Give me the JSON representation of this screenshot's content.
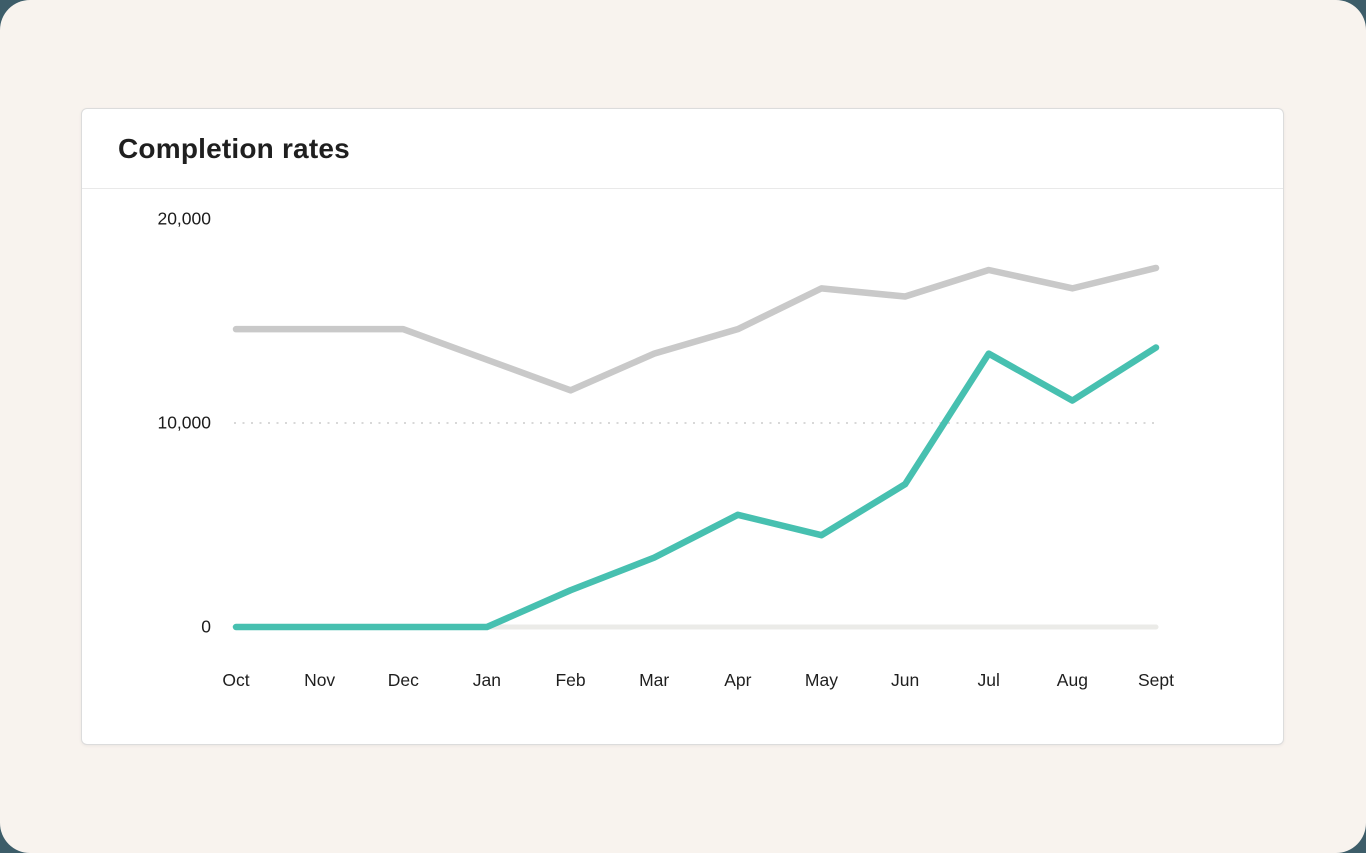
{
  "card": {
    "title": "Completion rates"
  },
  "colors": {
    "page_background": "#3d5d69",
    "panel_background": "#f8f3ee",
    "card_background": "#ffffff",
    "card_border": "#dcdcdc",
    "divider": "#e9e9e9",
    "text": "#1f1f1f",
    "gridline_dotted": "#d8d8d8",
    "accent_teal": "#47c0b0",
    "line_gray": "#c9c9c9",
    "line_light": "#ebebe8"
  },
  "chart_data": {
    "type": "line",
    "title": "Completion rates",
    "categories": [
      "Oct",
      "Nov",
      "Dec",
      "Jan",
      "Feb",
      "Mar",
      "Apr",
      "May",
      "Jun",
      "Jul",
      "Aug",
      "Sept"
    ],
    "series": [
      {
        "name": "series-1-light",
        "color": "#ebebe8",
        "values": [
          0,
          0,
          0,
          0,
          0,
          0,
          0,
          0,
          0,
          0,
          0,
          0
        ]
      },
      {
        "name": "series-2-gray",
        "color": "#c9c9c9",
        "values": [
          14600,
          14600,
          14600,
          13100,
          11600,
          13400,
          14600,
          16600,
          16200,
          17500,
          16600,
          17600
        ]
      },
      {
        "name": "series-3-teal",
        "color": "#47c0b0",
        "values": [
          0,
          0,
          0,
          0,
          1800,
          3400,
          5500,
          4500,
          7000,
          13400,
          11100,
          13700
        ]
      }
    ],
    "yticks": [
      {
        "label": "20,000",
        "value": 20000
      },
      {
        "label": "10,000",
        "value": 10000
      },
      {
        "label": "0",
        "value": 0
      }
    ],
    "grid_values": [
      10000
    ],
    "xlabel": "",
    "ylabel": "",
    "ylim": [
      0,
      20000
    ],
    "legend": "none",
    "grid": "dotted horizontal at 10,000 only"
  }
}
